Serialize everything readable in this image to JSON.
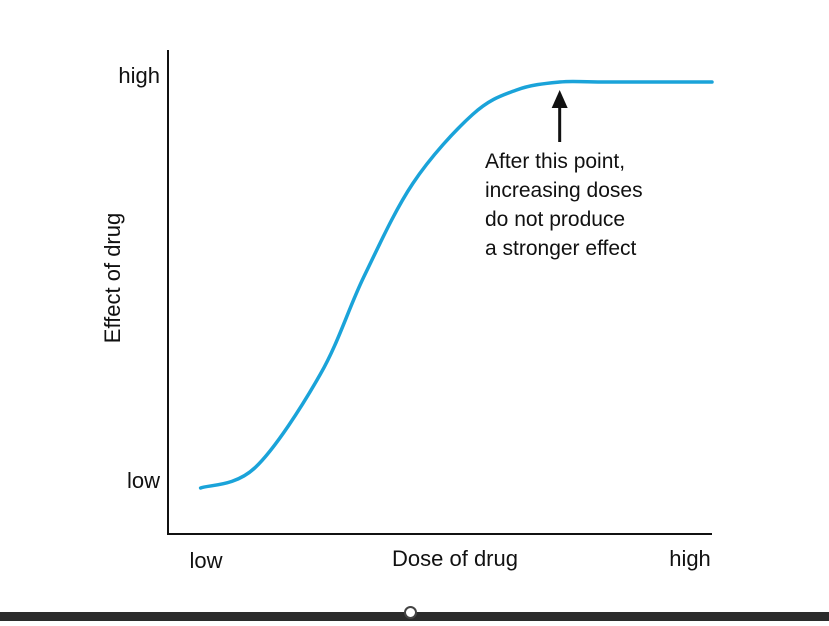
{
  "chart_data": {
    "type": "line",
    "xlabel": "Dose of drug",
    "ylabel": "Effect of drug",
    "x_tick_labels": [
      "low",
      "high"
    ],
    "y_tick_labels": [
      "low",
      "high"
    ],
    "xlim": [
      0,
      1
    ],
    "ylim": [
      0,
      1
    ],
    "series": [
      {
        "color": "#1aa3d9",
        "x": [
          0.06,
          0.16,
          0.28,
          0.36,
          0.45,
          0.56,
          0.64,
          0.72,
          0.8,
          1.0
        ],
        "y": [
          0.0,
          0.05,
          0.28,
          0.52,
          0.75,
          0.92,
          0.98,
          1.0,
          1.0,
          1.0
        ]
      }
    ],
    "annotation": {
      "lines": [
        "After this point,",
        "increasing doses",
        "do not produce",
        "a stronger effect"
      ],
      "arrow_target_x": 0.72,
      "arrow_target_y": 1.0
    },
    "grid": false,
    "legend": "none"
  },
  "colors": {
    "curve": "#1aa3d9",
    "axis": "#111111",
    "bottom_bar": "#2b2b2b"
  }
}
